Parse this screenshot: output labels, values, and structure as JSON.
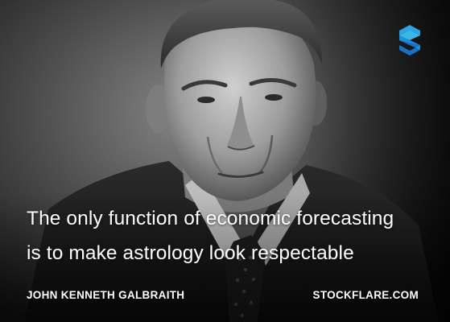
{
  "quote": {
    "line1": "The only function of economic forecasting",
    "line2": "is to make astrology look respectable"
  },
  "author": "JOHN KENNETH GALBRAITH",
  "site": "STOCKFLARE.COM",
  "logo": {
    "icon": "stockflare-s-logo-icon",
    "color_top": "#2aa6e0",
    "color_bottom": "#1672c8"
  },
  "photo": {
    "icon": "portrait-photo",
    "style": "black-and-white"
  }
}
